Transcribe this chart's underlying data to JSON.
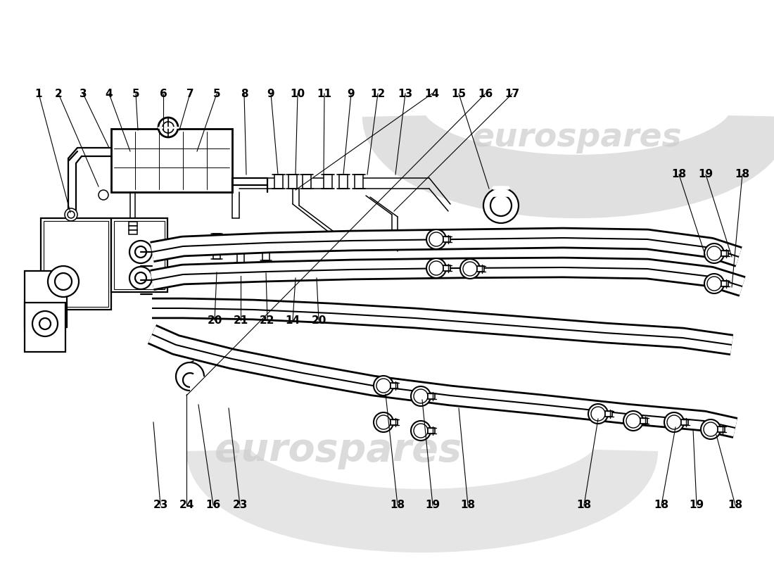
{
  "bg_color": "#ffffff",
  "line_color": "#000000",
  "watermark_color": "#d0d0d0",
  "watermark_text": "eurospares",
  "labels_top": [
    [
      "1",
      55,
      133
    ],
    [
      "2",
      83,
      133
    ],
    [
      "3",
      118,
      133
    ],
    [
      "4",
      155,
      133
    ],
    [
      "5",
      193,
      133
    ],
    [
      "6",
      232,
      133
    ],
    [
      "7",
      270,
      133
    ],
    [
      "5",
      308,
      133
    ],
    [
      "8",
      347,
      133
    ],
    [
      "9",
      385,
      133
    ],
    [
      "10",
      423,
      133
    ],
    [
      "11",
      461,
      133
    ],
    [
      "9",
      499,
      133
    ],
    [
      "12",
      537,
      133
    ],
    [
      "13",
      576,
      133
    ],
    [
      "14",
      614,
      133
    ],
    [
      "15",
      652,
      133
    ],
    [
      "16",
      690,
      133
    ],
    [
      "17",
      728,
      133
    ]
  ],
  "labels_right": [
    [
      "18",
      965,
      248
    ],
    [
      "19",
      1003,
      248
    ],
    [
      "18",
      1055,
      248
    ]
  ],
  "labels_mid": [
    [
      "20",
      305,
      455
    ],
    [
      "21",
      342,
      455
    ],
    [
      "22",
      380,
      455
    ],
    [
      "14",
      416,
      455
    ],
    [
      "20",
      453,
      455
    ]
  ],
  "labels_bottom": [
    [
      "23",
      228,
      718
    ],
    [
      "24",
      265,
      718
    ],
    [
      "16",
      303,
      718
    ],
    [
      "23",
      341,
      718
    ],
    [
      "18",
      565,
      718
    ],
    [
      "19",
      615,
      718
    ],
    [
      "18",
      665,
      718
    ],
    [
      "18",
      830,
      718
    ],
    [
      "18",
      940,
      718
    ],
    [
      "19",
      990,
      718
    ],
    [
      "18",
      1045,
      718
    ]
  ]
}
